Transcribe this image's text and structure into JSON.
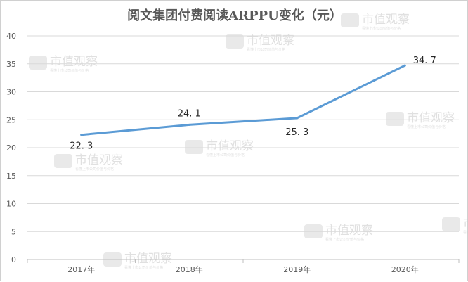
{
  "watermark": {
    "brand": "市值观察",
    "tagline": "看懂上市公司价值与价格"
  },
  "chart_data": {
    "type": "line",
    "title": "阅文集团付费阅读ARPPU变化（元）",
    "xlabel": "",
    "ylabel": "",
    "categories": [
      "2017年",
      "2018年",
      "2019年",
      "2020年"
    ],
    "series": [
      {
        "values": [
          22.3,
          24.1,
          25.3,
          34.7
        ],
        "color": "#5b9bd5"
      }
    ],
    "data_labels": [
      "22. 3",
      "24. 1",
      "25. 3",
      "34. 7"
    ],
    "yticks": [
      "0",
      "5",
      "10",
      "15",
      "20",
      "25",
      "30",
      "35",
      "40"
    ],
    "ylim": [
      0,
      40
    ],
    "grid": true,
    "legend": "none"
  }
}
